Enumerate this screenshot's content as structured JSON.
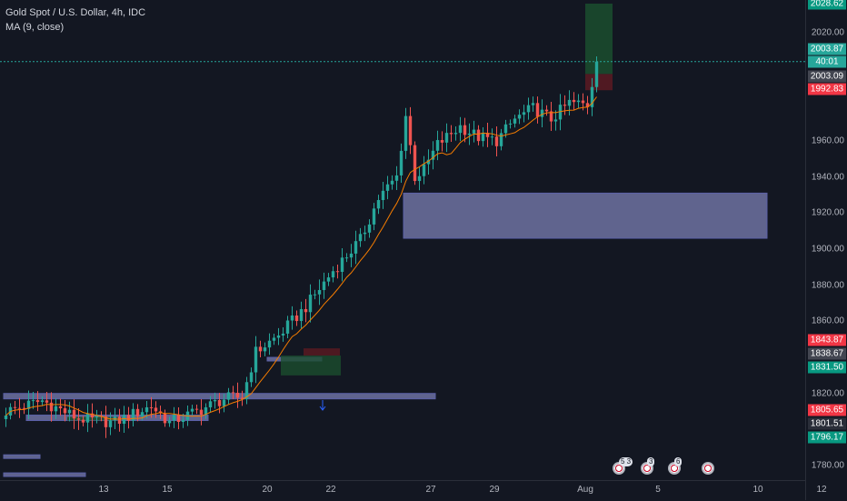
{
  "header": {
    "title": "Gold Spot / U.S. Dollar, 4h, IDC",
    "indicator": "MA (9, close)"
  },
  "colors": {
    "background": "#131722",
    "up": "#26a69a",
    "down": "#ef5350",
    "ma": "#f57c00",
    "zone": "#7b7fb3",
    "last_price": "#26a69a"
  },
  "price_axis": {
    "ticks": [
      "2020.00",
      "1960.00",
      "1940.00",
      "1920.00",
      "1900.00",
      "1880.00",
      "1860.00",
      "1820.00",
      "1780.00"
    ],
    "badges": {
      "top": "2028.62",
      "last": "2003.87",
      "countdown": "40:01",
      "mid": "2003.09",
      "red_upper": "1992.83",
      "red_lower": "1843.87",
      "grey": "1838.67",
      "green": "1831.50",
      "red_bottom": "1805.65",
      "dark": "1801.51",
      "green_bottom": "1796.17"
    }
  },
  "time_axis": {
    "labels": [
      "13",
      "15",
      "20",
      "22",
      "27",
      "29",
      "Aug",
      "5",
      "10",
      "12"
    ]
  },
  "events": [
    {
      "icon": "us-flag-icon",
      "count": "5 3"
    },
    {
      "icon": "us-flag-icon",
      "count": "3"
    },
    {
      "icon": "us-flag-icon",
      "count": "6"
    },
    {
      "icon": "us-flag-icon",
      "count": ""
    }
  ],
  "chart_data": {
    "type": "candlestick",
    "title": "Gold Spot / U.S. Dollar, 4h, IDC",
    "indicator": "MA (9, close)",
    "ylim": [
      1772,
      2038
    ],
    "last_price": 2003.87,
    "x_labels": [
      "13",
      "15",
      "20",
      "22",
      "27",
      "29",
      "Aug",
      "5",
      "10",
      "12"
    ],
    "anchors": [
      {
        "bar": 0,
        "close": 1810
      },
      {
        "bar": 8,
        "close": 1816
      },
      {
        "bar": 16,
        "close": 1806
      },
      {
        "bar": 24,
        "close": 1804
      },
      {
        "bar": 32,
        "close": 1813
      },
      {
        "bar": 36,
        "close": 1804
      },
      {
        "bar": 42,
        "close": 1810
      },
      {
        "bar": 48,
        "close": 1817
      },
      {
        "bar": 52,
        "close": 1818
      },
      {
        "bar": 55,
        "close": 1843
      },
      {
        "bar": 60,
        "close": 1852
      },
      {
        "bar": 66,
        "close": 1868
      },
      {
        "bar": 72,
        "close": 1888
      },
      {
        "bar": 78,
        "close": 1905
      },
      {
        "bar": 82,
        "close": 1928
      },
      {
        "bar": 86,
        "close": 1940
      },
      {
        "bar": 88,
        "close": 1974
      },
      {
        "bar": 90,
        "close": 1940
      },
      {
        "bar": 92,
        "close": 1944
      },
      {
        "bar": 95,
        "close": 1958
      },
      {
        "bar": 100,
        "close": 1968
      },
      {
        "bar": 104,
        "close": 1962
      },
      {
        "bar": 108,
        "close": 1960
      },
      {
        "bar": 112,
        "close": 1972
      },
      {
        "bar": 116,
        "close": 1978
      },
      {
        "bar": 120,
        "close": 1972
      },
      {
        "bar": 124,
        "close": 1981
      },
      {
        "bar": 128,
        "close": 1980
      },
      {
        "bar": 130,
        "close": 2003.87
      }
    ],
    "zones": [
      {
        "y_top": 1931,
        "y_bottom": 1906,
        "bar_start": 88,
        "bar_end": 168
      },
      {
        "y_top": 1820,
        "y_bottom": 1817,
        "bar_start": 0,
        "bar_end": 95
      },
      {
        "y_top": 1808,
        "y_bottom": 1805,
        "bar_start": 5,
        "bar_end": 45
      },
      {
        "y_top": 1840,
        "y_bottom": 1838,
        "bar_start": 58,
        "bar_end": 70
      },
      {
        "y_top": 1786,
        "y_bottom": 1784,
        "bar_start": 0,
        "bar_end": 8
      },
      {
        "y_top": 1776,
        "y_bottom": 1774,
        "bar_start": 0,
        "bar_end": 18
      }
    ],
    "position_box": {
      "bar_start": 128,
      "bar_end": 134,
      "entry": 1997,
      "target": 2036,
      "stop": 1988
    }
  }
}
